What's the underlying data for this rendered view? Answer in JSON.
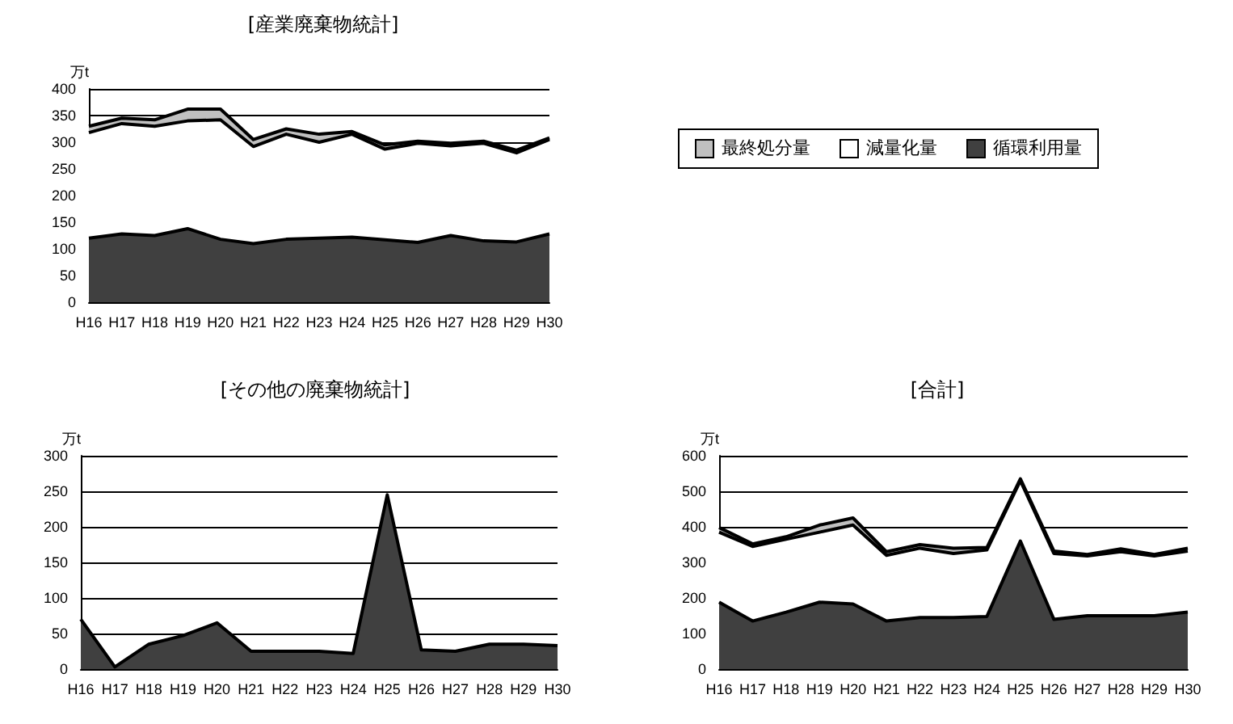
{
  "chart_data": [
    {
      "type": "area",
      "title": "[産業廃棄物統計]",
      "ylabel": "万t",
      "stacked": true,
      "grid": "y",
      "legend": "right",
      "categories": [
        "H16",
        "H17",
        "H18",
        "H19",
        "H20",
        "H21",
        "H22",
        "H23",
        "H24",
        "H25",
        "H26",
        "H27",
        "H28",
        "H29",
        "H30"
      ],
      "ylim": [
        0,
        400
      ],
      "yticks": [
        0,
        50,
        100,
        150,
        200,
        250,
        300,
        350,
        400
      ],
      "series": [
        {
          "name": "循環利用量",
          "color": "#404040",
          "values": [
            120,
            128,
            125,
            138,
            118,
            110,
            118,
            120,
            122,
            117,
            112,
            125,
            115,
            113,
            128
          ]
        },
        {
          "name": "減量化量",
          "color": "#ffffff",
          "values": [
            198,
            207,
            205,
            202,
            224,
            182,
            197,
            180,
            193,
            170,
            186,
            168,
            183,
            167,
            177
          ]
        },
        {
          "name": "最終処分量",
          "color": "#c0c0c0",
          "values": [
            12,
            10,
            12,
            22,
            20,
            13,
            10,
            15,
            5,
            8,
            4,
            5,
            4,
            5,
            3
          ]
        }
      ]
    },
    {
      "type": "area",
      "title": "[その他の廃棄物統計]",
      "ylabel": "万t",
      "stacked": true,
      "grid": "y",
      "categories": [
        "H16",
        "H17",
        "H18",
        "H19",
        "H20",
        "H21",
        "H22",
        "H23",
        "H24",
        "H25",
        "H26",
        "H27",
        "H28",
        "H29",
        "H30"
      ],
      "ylim": [
        0,
        300
      ],
      "yticks": [
        0,
        50,
        100,
        150,
        200,
        250,
        300
      ],
      "series": [
        {
          "color": "#404040",
          "values": [
            70,
            3,
            35,
            47,
            65,
            25,
            25,
            25,
            22,
            245,
            27,
            25,
            35,
            35,
            33
          ]
        }
      ]
    },
    {
      "type": "area",
      "title": "[合計]",
      "ylabel": "万t",
      "stacked": true,
      "grid": "y",
      "categories": [
        "H16",
        "H17",
        "H18",
        "H19",
        "H20",
        "H21",
        "H22",
        "H23",
        "H24",
        "H25",
        "H26",
        "H27",
        "H28",
        "H29",
        "H30"
      ],
      "ylim": [
        0,
        600
      ],
      "yticks": [
        0,
        100,
        200,
        300,
        400,
        500,
        600
      ],
      "series": [
        {
          "color": "#404040",
          "values": [
            188,
            135,
            160,
            188,
            183,
            135,
            145,
            145,
            148,
            360,
            140,
            150,
            150,
            150,
            160
          ]
        },
        {
          "color": "#ffffff",
          "values": [
            197,
            210,
            205,
            197,
            222,
            185,
            195,
            180,
            187,
            170,
            185,
            168,
            180,
            168,
            172
          ]
        },
        {
          "color": "#c0c0c0",
          "values": [
            13,
            7,
            7,
            20,
            20,
            10,
            10,
            15,
            7,
            5,
            7,
            4,
            8,
            4,
            8
          ]
        }
      ]
    }
  ]
}
